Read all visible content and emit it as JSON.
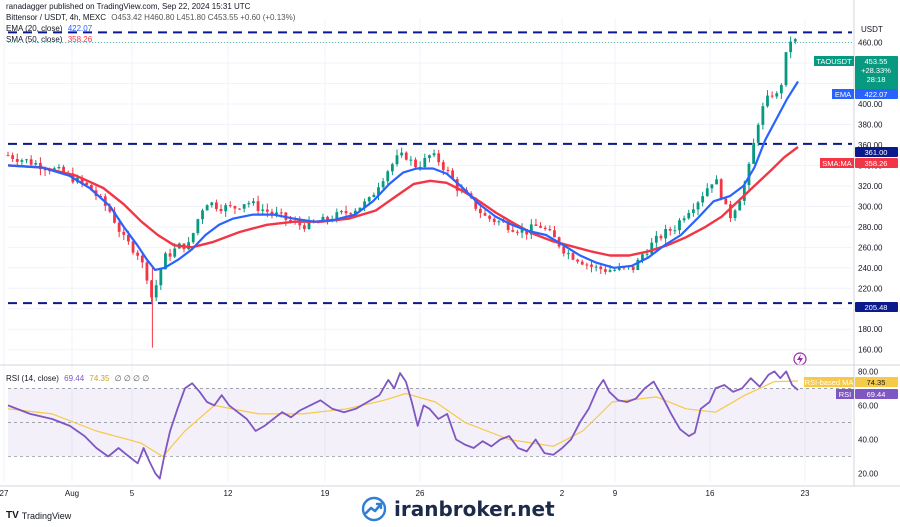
{
  "header": {
    "publisher_line": "ranadagger published on TradingView.com, Sep 22, 2024 15:31 UTC",
    "symbol_line": "Bittensor / USDT, 4h, MEXC",
    "ohlc": "O453.42 H460.80 L451.80 C453.55 +0.60 (+0.13%)",
    "ema_label": "EMA (20, close)",
    "ema_value": "422.07",
    "sma_label": "SMA (50, close)",
    "sma_value": "358.26",
    "rsi_label": "RSI (14, close)",
    "rsi_value": "69.44",
    "rsi_value2": "74.35",
    "rsi_extra": "∅ ∅ ∅ ∅",
    "currency": "USDT"
  },
  "colors": {
    "up": "#089981",
    "down": "#f23645",
    "ema": "#2962ff",
    "sma": "#f23645",
    "rsi": "#7e57c2",
    "rsi_ma": "#f7c948",
    "level_line": "#0a1a8c"
  },
  "badges": {
    "ticker": "TAOUSDT",
    "price": "453.55",
    "change": "+28.33%",
    "countdown": "28:18",
    "ema_tag": "EMA",
    "ema_val": "422.07",
    "level_upper": "361.00",
    "sma_tag": "SMA:MA",
    "sma_val": "358.26",
    "level_lower": "205.48",
    "rsi_ma_tag": "RSI-based MA",
    "rsi_ma_val": "74.35",
    "rsi_tag": "RSI",
    "rsi_val": "69.44"
  },
  "watermark": "iranbroker.net",
  "footer_logo": "TradingView",
  "chart_data": {
    "type": "candlestick",
    "price_axis": {
      "ticks": [
        160,
        180,
        200,
        220,
        240,
        260,
        280,
        300,
        320,
        340,
        360,
        380,
        400,
        420,
        440,
        460
      ],
      "range": [
        148,
        484
      ]
    },
    "time_axis": {
      "labels": [
        "27",
        "Aug",
        "5",
        "12",
        "19",
        "26",
        "2",
        "9",
        "16",
        "23"
      ]
    },
    "levels": [
      {
        "value": 361.0,
        "label": "361.00"
      },
      {
        "value": 205.48,
        "label": "205.48"
      },
      {
        "value": 470.0,
        "label": ""
      }
    ],
    "close_path": [
      [
        0,
        350
      ],
      [
        20,
        342
      ],
      [
        40,
        333
      ],
      [
        60,
        318
      ],
      [
        75,
        295
      ],
      [
        85,
        268
      ],
      [
        95,
        255
      ],
      [
        102,
        232
      ],
      [
        106,
        208
      ],
      [
        110,
        230
      ],
      [
        115,
        250
      ],
      [
        120,
        255
      ],
      [
        127,
        262
      ],
      [
        133,
        262
      ],
      [
        140,
        290
      ],
      [
        145,
        305
      ],
      [
        155,
        300
      ],
      [
        165,
        298
      ],
      [
        175,
        305
      ],
      [
        185,
        298
      ],
      [
        200,
        290
      ],
      [
        212,
        282
      ],
      [
        222,
        282
      ],
      [
        230,
        285
      ],
      [
        240,
        290
      ],
      [
        250,
        295
      ],
      [
        258,
        300
      ],
      [
        265,
        305
      ],
      [
        272,
        322
      ],
      [
        280,
        338
      ],
      [
        286,
        347
      ],
      [
        292,
        350
      ],
      [
        298,
        340
      ],
      [
        304,
        342
      ],
      [
        310,
        350
      ],
      [
        316,
        345
      ],
      [
        322,
        335
      ],
      [
        330,
        318
      ],
      [
        340,
        305
      ],
      [
        350,
        290
      ],
      [
        360,
        285
      ],
      [
        370,
        280
      ],
      [
        380,
        275
      ],
      [
        390,
        282
      ],
      [
        400,
        270
      ],
      [
        410,
        255
      ],
      [
        420,
        248
      ],
      [
        430,
        240
      ],
      [
        440,
        238
      ],
      [
        450,
        238
      ],
      [
        460,
        240
      ],
      [
        465,
        252
      ],
      [
        472,
        262
      ],
      [
        480,
        272
      ],
      [
        490,
        280
      ],
      [
        498,
        295
      ],
      [
        506,
        305
      ],
      [
        512,
        316
      ],
      [
        518,
        327
      ],
      [
        522,
        320
      ],
      [
        526,
        300
      ],
      [
        530,
        290
      ],
      [
        536,
        305
      ],
      [
        542,
        325
      ],
      [
        546,
        350
      ],
      [
        550,
        380
      ],
      [
        554,
        395
      ],
      [
        558,
        405
      ],
      [
        562,
        412
      ],
      [
        566,
        405
      ],
      [
        570,
        440
      ],
      [
        574,
        462
      ],
      [
        577,
        465
      ],
      [
        580,
        453
      ]
    ],
    "ema20": [
      [
        0,
        340
      ],
      [
        25,
        338
      ],
      [
        45,
        330
      ],
      [
        60,
        318
      ],
      [
        75,
        300
      ],
      [
        85,
        280
      ],
      [
        95,
        262
      ],
      [
        102,
        248
      ],
      [
        108,
        238
      ],
      [
        115,
        240
      ],
      [
        125,
        248
      ],
      [
        135,
        258
      ],
      [
        145,
        272
      ],
      [
        155,
        282
      ],
      [
        165,
        288
      ],
      [
        180,
        292
      ],
      [
        195,
        292
      ],
      [
        210,
        288
      ],
      [
        225,
        285
      ],
      [
        240,
        287
      ],
      [
        255,
        292
      ],
      [
        268,
        305
      ],
      [
        280,
        322
      ],
      [
        290,
        333
      ],
      [
        300,
        337
      ],
      [
        312,
        337
      ],
      [
        322,
        332
      ],
      [
        334,
        318
      ],
      [
        346,
        302
      ],
      [
        358,
        290
      ],
      [
        370,
        282
      ],
      [
        382,
        276
      ],
      [
        395,
        272
      ],
      [
        408,
        262
      ],
      [
        420,
        252
      ],
      [
        432,
        245
      ],
      [
        445,
        240
      ],
      [
        458,
        242
      ],
      [
        470,
        250
      ],
      [
        482,
        262
      ],
      [
        494,
        272
      ],
      [
        506,
        288
      ],
      [
        518,
        305
      ],
      [
        530,
        310
      ],
      [
        540,
        320
      ],
      [
        548,
        338
      ],
      [
        556,
        365
      ],
      [
        564,
        385
      ],
      [
        572,
        405
      ],
      [
        580,
        422
      ]
    ],
    "sma50": [
      [
        0,
        340
      ],
      [
        25,
        338
      ],
      [
        50,
        330
      ],
      [
        70,
        318
      ],
      [
        85,
        302
      ],
      [
        98,
        285
      ],
      [
        110,
        272
      ],
      [
        122,
        262
      ],
      [
        135,
        260
      ],
      [
        150,
        265
      ],
      [
        170,
        275
      ],
      [
        190,
        282
      ],
      [
        210,
        285
      ],
      [
        230,
        285
      ],
      [
        250,
        288
      ],
      [
        270,
        296
      ],
      [
        285,
        310
      ],
      [
        298,
        322
      ],
      [
        310,
        325
      ],
      [
        322,
        323
      ],
      [
        334,
        315
      ],
      [
        346,
        305
      ],
      [
        358,
        294
      ],
      [
        372,
        283
      ],
      [
        386,
        273
      ],
      [
        400,
        266
      ],
      [
        414,
        261
      ],
      [
        428,
        256
      ],
      [
        442,
        252
      ],
      [
        456,
        252
      ],
      [
        470,
        256
      ],
      [
        484,
        262
      ],
      [
        498,
        270
      ],
      [
        512,
        280
      ],
      [
        524,
        290
      ],
      [
        536,
        305
      ],
      [
        548,
        320
      ],
      [
        560,
        335
      ],
      [
        570,
        348
      ],
      [
        580,
        358
      ]
    ],
    "rsi": {
      "ticks": [
        20,
        40,
        60,
        80
      ],
      "band": [
        30,
        70
      ],
      "range": [
        15,
        82
      ],
      "series": [
        [
          0,
          60
        ],
        [
          15,
          55
        ],
        [
          30,
          52
        ],
        [
          42,
          48
        ],
        [
          52,
          42
        ],
        [
          60,
          35
        ],
        [
          68,
          30
        ],
        [
          75,
          35
        ],
        [
          82,
          30
        ],
        [
          88,
          26
        ],
        [
          92,
          35
        ],
        [
          96,
          27
        ],
        [
          100,
          20
        ],
        [
          103,
          17
        ],
        [
          106,
          30
        ],
        [
          110,
          45
        ],
        [
          115,
          58
        ],
        [
          120,
          70
        ],
        [
          125,
          73
        ],
        [
          130,
          68
        ],
        [
          135,
          62
        ],
        [
          140,
          60
        ],
        [
          145,
          66
        ],
        [
          150,
          60
        ],
        [
          156,
          56
        ],
        [
          162,
          52
        ],
        [
          168,
          45
        ],
        [
          174,
          48
        ],
        [
          180,
          52
        ],
        [
          186,
          56
        ],
        [
          192,
          53
        ],
        [
          198,
          57
        ],
        [
          205,
          60
        ],
        [
          212,
          63
        ],
        [
          220,
          58
        ],
        [
          228,
          56
        ],
        [
          236,
          58
        ],
        [
          244,
          62
        ],
        [
          252,
          66
        ],
        [
          258,
          75
        ],
        [
          262,
          70
        ],
        [
          266,
          79
        ],
        [
          270,
          74
        ],
        [
          274,
          62
        ],
        [
          278,
          48
        ],
        [
          282,
          60
        ],
        [
          286,
          58
        ],
        [
          292,
          52
        ],
        [
          298,
          55
        ],
        [
          304,
          40
        ],
        [
          310,
          37
        ],
        [
          316,
          35
        ],
        [
          322,
          39
        ],
        [
          328,
          36
        ],
        [
          334,
          40
        ],
        [
          340,
          42
        ],
        [
          346,
          35
        ],
        [
          352,
          33
        ],
        [
          358,
          40
        ],
        [
          364,
          32
        ],
        [
          370,
          31
        ],
        [
          376,
          35
        ],
        [
          382,
          40
        ],
        [
          388,
          50
        ],
        [
          394,
          58
        ],
        [
          400,
          70
        ],
        [
          404,
          75
        ],
        [
          408,
          68
        ],
        [
          414,
          63
        ],
        [
          420,
          62
        ],
        [
          426,
          64
        ],
        [
          432,
          70
        ],
        [
          438,
          74
        ],
        [
          444,
          65
        ],
        [
          450,
          55
        ],
        [
          456,
          46
        ],
        [
          462,
          42
        ],
        [
          466,
          44
        ],
        [
          470,
          58
        ],
        [
          476,
          62
        ],
        [
          480,
          70
        ],
        [
          486,
          72
        ],
        [
          492,
          68
        ],
        [
          498,
          70
        ],
        [
          504,
          76
        ],
        [
          510,
          71
        ],
        [
          516,
          78
        ],
        [
          520,
          80
        ],
        [
          524,
          76
        ],
        [
          528,
          80
        ],
        [
          532,
          72
        ],
        [
          536,
          69
        ]
      ],
      "ma": [
        [
          0,
          58
        ],
        [
          30,
          55
        ],
        [
          60,
          45
        ],
        [
          90,
          38
        ],
        [
          105,
          30
        ],
        [
          120,
          45
        ],
        [
          140,
          60
        ],
        [
          170,
          55
        ],
        [
          200,
          55
        ],
        [
          230,
          58
        ],
        [
          255,
          63
        ],
        [
          270,
          67
        ],
        [
          290,
          62
        ],
        [
          310,
          50
        ],
        [
          340,
          40
        ],
        [
          370,
          36
        ],
        [
          390,
          45
        ],
        [
          410,
          62
        ],
        [
          440,
          65
        ],
        [
          460,
          58
        ],
        [
          480,
          56
        ],
        [
          500,
          66
        ],
        [
          520,
          74
        ],
        [
          536,
          74.35
        ]
      ]
    }
  }
}
